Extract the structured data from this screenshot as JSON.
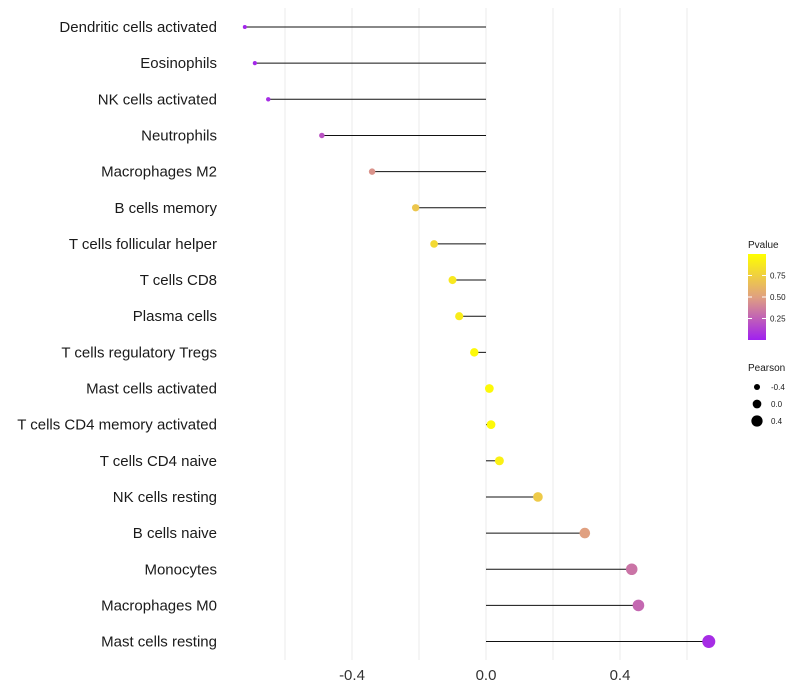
{
  "chart_data": {
    "type": "lollipop",
    "title": "",
    "xlabel": "",
    "ylabel": "",
    "xlim": [
      -0.72,
      0.7
    ],
    "x_ticks": [
      "-0.4",
      "0.0",
      "0.4"
    ],
    "x_tick_values": [
      -0.4,
      0.0,
      0.4
    ],
    "grid": true,
    "categories": [
      "Dendritic cells activated",
      "Eosinophils",
      "NK cells activated",
      "Neutrophils",
      "Macrophages M2",
      "B cells memory",
      "T cells follicular helper",
      "T cells CD8",
      "Plasma cells",
      "T cells regulatory  Tregs ",
      "Mast cells activated",
      "T cells CD4 memory activated",
      "T cells CD4 naive",
      "NK cells resting",
      "B cells naive",
      "Monocytes",
      "Macrophages M0",
      "Mast cells resting"
    ],
    "pearson": [
      -0.72,
      -0.69,
      -0.65,
      -0.49,
      -0.34,
      -0.21,
      -0.155,
      -0.1,
      -0.08,
      -0.035,
      0.01,
      0.015,
      0.04,
      0.155,
      0.295,
      0.435,
      0.455,
      0.665
    ],
    "pvalue": [
      0.02,
      0.03,
      0.05,
      0.2,
      0.45,
      0.7,
      0.8,
      0.88,
      0.9,
      0.97,
      0.97,
      0.97,
      0.92,
      0.72,
      0.5,
      0.33,
      0.28,
      0.05
    ],
    "color_legend": {
      "title": "Pvalue",
      "ticks": [
        "0.75",
        "0.50",
        "0.25"
      ],
      "tick_values": [
        0.75,
        0.5,
        0.25
      ],
      "range": [
        0.0,
        1.0
      ],
      "low_color": "#A020F0",
      "mid_color": "#E0A080",
      "high_color": "#FFFF00"
    },
    "size_legend": {
      "title": "Pearson",
      "labels": [
        "-0.4",
        "0.0",
        "0.4"
      ],
      "values": [
        -0.4,
        0.0,
        0.4
      ]
    },
    "legend_position": "right"
  }
}
